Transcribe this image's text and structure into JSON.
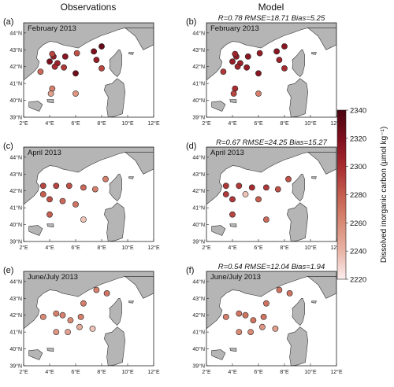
{
  "figure": {
    "column_titles": [
      "Observations",
      "Model"
    ],
    "colorbar": {
      "label": "Dissolved inorganic carbon (µmol kg⁻¹)",
      "range": [
        2220,
        2340
      ],
      "ticks": [
        2220,
        2240,
        2260,
        2280,
        2300,
        2320,
        2340
      ],
      "colors": [
        "#fbeeee",
        "#e9b4a6",
        "#d98a75",
        "#c55e4f",
        "#a82b30",
        "#7f0f1e",
        "#4a0510"
      ]
    }
  },
  "chart_data": [
    {
      "type": "scatter",
      "letter": "(a)",
      "column": "Observations",
      "label": "February 2013",
      "stats": "",
      "xlabel": "",
      "ylabel": "",
      "xlim": [
        2,
        12
      ],
      "ylim": [
        39,
        44.6
      ],
      "xticks": [
        "2°E",
        "4°E",
        "6°E",
        "8°E",
        "10°E",
        "12°E"
      ],
      "yticks": [
        "39°N",
        "40°N",
        "41°N",
        "42°N",
        "43°N",
        "44°N"
      ],
      "points": [
        {
          "lon": 4.0,
          "lat": 42.3,
          "dic": 2320
        },
        {
          "lon": 4.3,
          "lat": 42.6,
          "dic": 2310
        },
        {
          "lon": 4.6,
          "lat": 42.2,
          "dic": 2305
        },
        {
          "lon": 4.4,
          "lat": 42.0,
          "dic": 2300
        },
        {
          "lon": 4.2,
          "lat": 42.75,
          "dic": 2290
        },
        {
          "lon": 5.2,
          "lat": 42.6,
          "dic": 2315
        },
        {
          "lon": 5.1,
          "lat": 41.95,
          "dic": 2295
        },
        {
          "lon": 6.1,
          "lat": 42.8,
          "dic": 2285
        },
        {
          "lon": 6.0,
          "lat": 41.6,
          "dic": 2325
        },
        {
          "lon": 7.4,
          "lat": 42.9,
          "dic": 2320
        },
        {
          "lon": 8.0,
          "lat": 43.2,
          "dic": 2330
        },
        {
          "lon": 7.6,
          "lat": 42.4,
          "dic": 2310
        },
        {
          "lon": 8.0,
          "lat": 41.9,
          "dic": 2290
        },
        {
          "lon": 3.3,
          "lat": 41.7,
          "dic": 2275
        },
        {
          "lon": 4.2,
          "lat": 40.7,
          "dic": 2265
        },
        {
          "lon": 4.1,
          "lat": 40.4,
          "dic": 2250
        },
        {
          "lon": 6.0,
          "lat": 40.4,
          "dic": 2255
        }
      ]
    },
    {
      "type": "scatter",
      "letter": "(b)",
      "column": "Model",
      "label": "February 2013",
      "stats": "R=0.78   RMSE=18.71   Bias=5.25",
      "xlabel": "",
      "ylabel": "",
      "xlim": [
        2,
        12
      ],
      "ylim": [
        39,
        44.6
      ],
      "xticks": [
        "2°E",
        "4°E",
        "6°E",
        "8°E",
        "10°E",
        "12°E"
      ],
      "yticks": [
        "39°N",
        "40°N",
        "41°N",
        "42°N",
        "43°N",
        "44°N"
      ],
      "points": [
        {
          "lon": 4.0,
          "lat": 42.3,
          "dic": 2310
        },
        {
          "lon": 4.3,
          "lat": 42.6,
          "dic": 2310
        },
        {
          "lon": 4.6,
          "lat": 42.2,
          "dic": 2305
        },
        {
          "lon": 4.4,
          "lat": 42.0,
          "dic": 2305
        },
        {
          "lon": 4.2,
          "lat": 42.75,
          "dic": 2305
        },
        {
          "lon": 5.2,
          "lat": 42.6,
          "dic": 2315
        },
        {
          "lon": 5.1,
          "lat": 41.95,
          "dic": 2310
        },
        {
          "lon": 6.1,
          "lat": 42.8,
          "dic": 2310
        },
        {
          "lon": 6.0,
          "lat": 41.6,
          "dic": 2315
        },
        {
          "lon": 7.4,
          "lat": 42.9,
          "dic": 2315
        },
        {
          "lon": 8.0,
          "lat": 43.2,
          "dic": 2315
        },
        {
          "lon": 7.6,
          "lat": 42.4,
          "dic": 2305
        },
        {
          "lon": 8.0,
          "lat": 41.9,
          "dic": 2300
        },
        {
          "lon": 3.3,
          "lat": 41.7,
          "dic": 2295
        },
        {
          "lon": 4.2,
          "lat": 40.7,
          "dic": 2300
        },
        {
          "lon": 4.1,
          "lat": 40.4,
          "dic": 2290
        },
        {
          "lon": 6.0,
          "lat": 40.4,
          "dic": 2265
        }
      ]
    },
    {
      "type": "scatter",
      "letter": "(c)",
      "column": "Observations",
      "label": "April 2013",
      "stats": "",
      "xlabel": "",
      "ylabel": "",
      "xlim": [
        2,
        12
      ],
      "ylim": [
        39,
        44.6
      ],
      "xticks": [
        "2°E",
        "4°E",
        "6°E",
        "8°E",
        "10°E",
        "12°E"
      ],
      "yticks": [
        "39°N",
        "40°N",
        "41°N",
        "42°N",
        "43°N",
        "44°N"
      ],
      "points": [
        {
          "lon": 3.5,
          "lat": 42.3,
          "dic": 2290
        },
        {
          "lon": 4.5,
          "lat": 42.3,
          "dic": 2290
        },
        {
          "lon": 5.5,
          "lat": 42.3,
          "dic": 2285
        },
        {
          "lon": 6.6,
          "lat": 42.2,
          "dic": 2275
        },
        {
          "lon": 7.5,
          "lat": 42.1,
          "dic": 2265
        },
        {
          "lon": 8.3,
          "lat": 42.7,
          "dic": 2265
        },
        {
          "lon": 4.0,
          "lat": 41.5,
          "dic": 2285
        },
        {
          "lon": 5.0,
          "lat": 41.4,
          "dic": 2275
        },
        {
          "lon": 6.0,
          "lat": 41.2,
          "dic": 2270
        },
        {
          "lon": 3.5,
          "lat": 41.8,
          "dic": 2280
        },
        {
          "lon": 4.0,
          "lat": 40.6,
          "dic": 2280
        },
        {
          "lon": 6.6,
          "lat": 40.3,
          "dic": 2235
        }
      ]
    },
    {
      "type": "scatter",
      "letter": "(d)",
      "column": "Model",
      "label": "April 2013",
      "stats": "R=0.67   RMSE=24.25   Bias=15.27",
      "xlabel": "",
      "ylabel": "",
      "xlim": [
        2,
        12
      ],
      "ylim": [
        39,
        44.6
      ],
      "xticks": [
        "2°E",
        "4°E",
        "6°E",
        "8°E",
        "10°E",
        "12°E"
      ],
      "yticks": [
        "39°N",
        "40°N",
        "41°N",
        "42°N",
        "43°N",
        "44°N"
      ],
      "points": [
        {
          "lon": 3.5,
          "lat": 42.3,
          "dic": 2295
        },
        {
          "lon": 4.5,
          "lat": 42.3,
          "dic": 2295
        },
        {
          "lon": 5.5,
          "lat": 42.2,
          "dic": 2300
        },
        {
          "lon": 6.6,
          "lat": 42.2,
          "dic": 2295
        },
        {
          "lon": 7.5,
          "lat": 42.1,
          "dic": 2285
        },
        {
          "lon": 8.3,
          "lat": 42.7,
          "dic": 2285
        },
        {
          "lon": 4.0,
          "lat": 41.5,
          "dic": 2295
        },
        {
          "lon": 5.0,
          "lat": 41.8,
          "dic": 2235
        },
        {
          "lon": 6.0,
          "lat": 41.5,
          "dic": 2280
        },
        {
          "lon": 3.5,
          "lat": 41.8,
          "dic": 2295
        },
        {
          "lon": 4.0,
          "lat": 40.6,
          "dic": 2290
        },
        {
          "lon": 6.6,
          "lat": 40.3,
          "dic": 2275
        }
      ]
    },
    {
      "type": "scatter",
      "letter": "(e)",
      "column": "Observations",
      "label": "June/July 2013",
      "stats": "",
      "xlabel": "",
      "ylabel": "",
      "xlim": [
        2,
        12
      ],
      "ylim": [
        39,
        44.6
      ],
      "xticks": [
        "2°E",
        "4°E",
        "6°E",
        "8°E",
        "10°E",
        "12°E"
      ],
      "yticks": [
        "39°N",
        "40°N",
        "41°N",
        "42°N",
        "43°N",
        "44°N"
      ],
      "points": [
        {
          "lon": 7.6,
          "lat": 43.5,
          "dic": 2265
        },
        {
          "lon": 8.4,
          "lat": 43.3,
          "dic": 2270
        },
        {
          "lon": 6.6,
          "lat": 42.7,
          "dic": 2265
        },
        {
          "lon": 3.5,
          "lat": 41.9,
          "dic": 2260
        },
        {
          "lon": 4.5,
          "lat": 42.1,
          "dic": 2265
        },
        {
          "lon": 5.0,
          "lat": 42.0,
          "dic": 2265
        },
        {
          "lon": 5.6,
          "lat": 41.7,
          "dic": 2260
        },
        {
          "lon": 6.4,
          "lat": 41.9,
          "dic": 2265
        },
        {
          "lon": 4.5,
          "lat": 41.0,
          "dic": 2255
        },
        {
          "lon": 5.4,
          "lat": 41.0,
          "dic": 2250
        },
        {
          "lon": 6.3,
          "lat": 41.3,
          "dic": 2245
        },
        {
          "lon": 7.3,
          "lat": 41.2,
          "dic": 2235
        }
      ]
    },
    {
      "type": "scatter",
      "letter": "(f)",
      "column": "Model",
      "label": "June/July 2013",
      "stats": "R=0.54   RMSE=12.04   Bias=1.94",
      "xlabel": "",
      "ylabel": "",
      "xlim": [
        2,
        12
      ],
      "ylim": [
        39,
        44.6
      ],
      "xticks": [
        "2°E",
        "4°E",
        "6°E",
        "8°E",
        "10°E",
        "12°E"
      ],
      "yticks": [
        "39°N",
        "40°N",
        "41°N",
        "42°N",
        "43°N",
        "44°N"
      ],
      "points": [
        {
          "lon": 7.6,
          "lat": 43.5,
          "dic": 2270
        },
        {
          "lon": 8.4,
          "lat": 43.3,
          "dic": 2270
        },
        {
          "lon": 6.6,
          "lat": 42.7,
          "dic": 2270
        },
        {
          "lon": 3.5,
          "lat": 41.9,
          "dic": 2265
        },
        {
          "lon": 4.5,
          "lat": 42.1,
          "dic": 2270
        },
        {
          "lon": 5.0,
          "lat": 42.0,
          "dic": 2270
        },
        {
          "lon": 5.6,
          "lat": 41.7,
          "dic": 2270
        },
        {
          "lon": 6.4,
          "lat": 41.9,
          "dic": 2270
        },
        {
          "lon": 4.5,
          "lat": 41.0,
          "dic": 2260
        },
        {
          "lon": 5.4,
          "lat": 41.0,
          "dic": 2260
        },
        {
          "lon": 6.3,
          "lat": 41.3,
          "dic": 2255
        },
        {
          "lon": 7.3,
          "lat": 41.2,
          "dic": 2250
        }
      ]
    }
  ]
}
